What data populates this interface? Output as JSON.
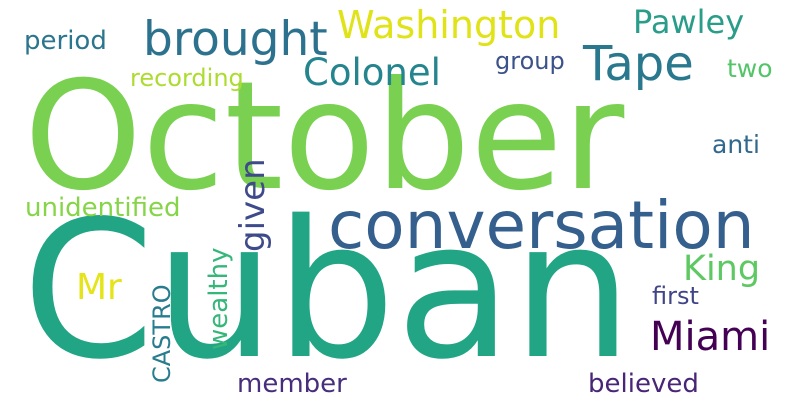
{
  "words": {
    "october": {
      "text": "October",
      "color": "#7ad151"
    },
    "cuban": {
      "text": "Cuban",
      "color": "#21a585"
    },
    "conversation": {
      "text": "conversation",
      "color": "#355f8d"
    },
    "brought": {
      "text": "brought",
      "color": "#2c728e"
    },
    "washington": {
      "text": "Washington",
      "color": "#dfe318"
    },
    "pawley": {
      "text": "Pawley",
      "color": "#2a9d8a"
    },
    "tape": {
      "text": "Tape",
      "color": "#2a788e"
    },
    "colonel": {
      "text": "Colonel",
      "color": "#25858e"
    },
    "period": {
      "text": "period",
      "color": "#2b758e"
    },
    "recording": {
      "text": "recording",
      "color": "#addc30"
    },
    "group": {
      "text": "group",
      "color": "#3b528b"
    },
    "two": {
      "text": "two",
      "color": "#52c569"
    },
    "anti": {
      "text": "anti",
      "color": "#31688e"
    },
    "unidentified": {
      "text": "unidentified",
      "color": "#86d549"
    },
    "given": {
      "text": "given",
      "color": "#3e4a89"
    },
    "king": {
      "text": "King",
      "color": "#5ec962"
    },
    "mr": {
      "text": "Mr",
      "color": "#e5e419"
    },
    "first": {
      "text": "first",
      "color": "#414487"
    },
    "miami": {
      "text": "Miami",
      "color": "#440154"
    },
    "wealthy": {
      "text": "wealthy",
      "color": "#35b779"
    },
    "castro": {
      "text": "CASTRO",
      "color": "#287c8e"
    },
    "member": {
      "text": "member",
      "color": "#472d7b"
    },
    "believed": {
      "text": "believed",
      "color": "#482576"
    }
  }
}
